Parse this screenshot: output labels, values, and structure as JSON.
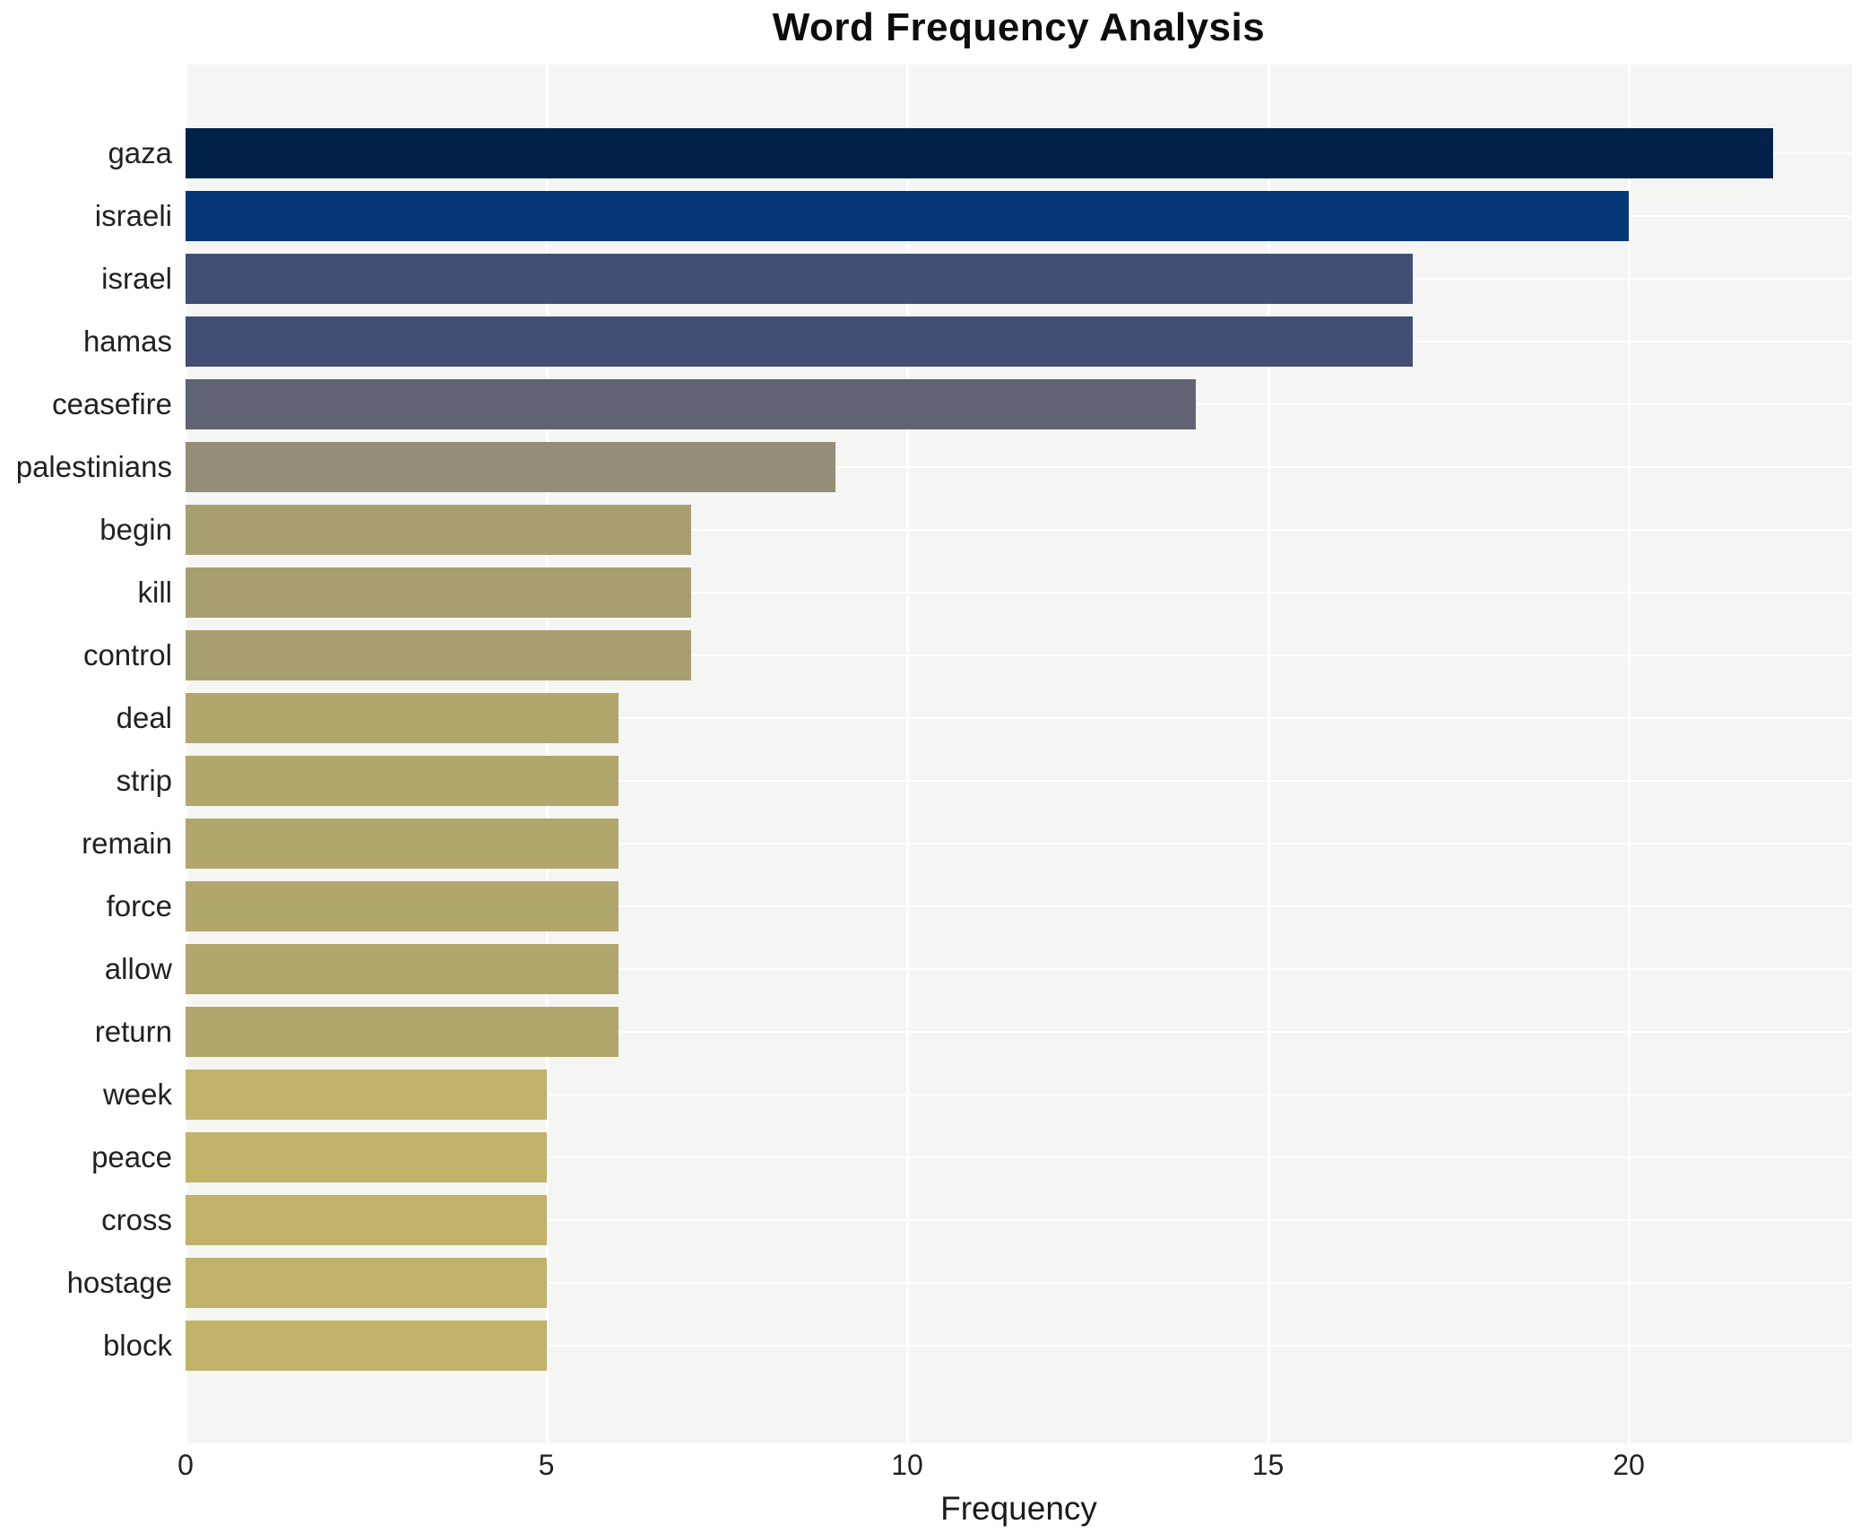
{
  "title": "Word Frequency Analysis",
  "chart_data": {
    "type": "bar",
    "orientation": "horizontal",
    "title": "Word Frequency Analysis",
    "xlabel": "Frequency",
    "ylabel": "",
    "categories": [
      "gaza",
      "israeli",
      "israel",
      "hamas",
      "ceasefire",
      "palestinians",
      "begin",
      "kill",
      "control",
      "deal",
      "strip",
      "remain",
      "force",
      "allow",
      "return",
      "week",
      "peace",
      "cross",
      "hostage",
      "block"
    ],
    "values": [
      22,
      20,
      17,
      17,
      14,
      9,
      7,
      7,
      7,
      6,
      6,
      6,
      6,
      6,
      6,
      5,
      5,
      5,
      5,
      5
    ],
    "bar_colors": [
      "#022249",
      "#053776",
      "#424e74",
      "#424e74",
      "#5f6372",
      "#948d78",
      "#a89f71",
      "#a89f71",
      "#a89f71",
      "#b1a76c",
      "#b1a76c",
      "#b1a76c",
      "#b1a76c",
      "#b1a76c",
      "#b1a76c",
      "#c0b369",
      "#c0b369",
      "#c0b369",
      "#c0b369",
      "#c0b369"
    ],
    "xlim": [
      0,
      23.1
    ],
    "xticks": [
      0,
      5,
      10,
      15,
      20
    ],
    "xtick_labels": [
      "0",
      "5",
      "10",
      "15",
      "20"
    ],
    "grid": true,
    "legend": "none",
    "plot_background": "#f5f5f3",
    "gridline_color": "#ffffff",
    "page_background": "#ffffff",
    "title_color": "#0d0d0d",
    "tick_label_color": "#212121"
  }
}
